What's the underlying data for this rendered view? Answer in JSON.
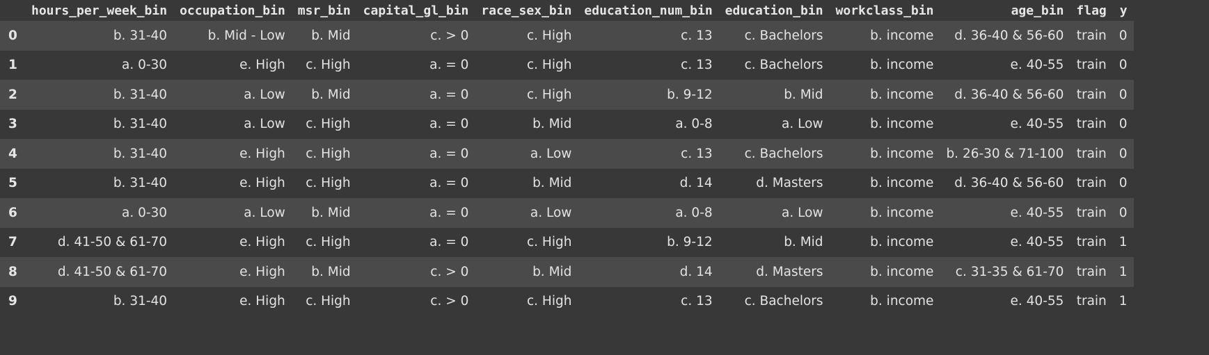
{
  "table": {
    "columns": [
      "hours_per_week_bin",
      "occupation_bin",
      "msr_bin",
      "capital_gl_bin",
      "race_sex_bin",
      "education_num_bin",
      "education_bin",
      "workclass_bin",
      "age_bin",
      "flag",
      "y"
    ],
    "index": [
      "0",
      "1",
      "2",
      "3",
      "4",
      "5",
      "6",
      "7",
      "8",
      "9"
    ],
    "rows": [
      [
        "b. 31-40",
        "b. Mid - Low",
        "b. Mid",
        "c. > 0",
        "c. High",
        "c. 13",
        "c. Bachelors",
        "b. income",
        "d. 36-40 & 56-60",
        "train",
        "0"
      ],
      [
        "a. 0-30",
        "e. High",
        "c. High",
        "a. = 0",
        "c. High",
        "c. 13",
        "c. Bachelors",
        "b. income",
        "e. 40-55",
        "train",
        "0"
      ],
      [
        "b. 31-40",
        "a. Low",
        "b. Mid",
        "a. = 0",
        "c. High",
        "b. 9-12",
        "b. Mid",
        "b. income",
        "d. 36-40 & 56-60",
        "train",
        "0"
      ],
      [
        "b. 31-40",
        "a. Low",
        "c. High",
        "a. = 0",
        "b. Mid",
        "a. 0-8",
        "a. Low",
        "b. income",
        "e. 40-55",
        "train",
        "0"
      ],
      [
        "b. 31-40",
        "e. High",
        "c. High",
        "a. = 0",
        "a. Low",
        "c. 13",
        "c. Bachelors",
        "b. income",
        "b. 26-30 & 71-100",
        "train",
        "0"
      ],
      [
        "b. 31-40",
        "e. High",
        "c. High",
        "a. = 0",
        "b. Mid",
        "d. 14",
        "d. Masters",
        "b. income",
        "d. 36-40 & 56-60",
        "train",
        "0"
      ],
      [
        "a. 0-30",
        "a. Low",
        "b. Mid",
        "a. = 0",
        "a. Low",
        "a. 0-8",
        "a. Low",
        "b. income",
        "e. 40-55",
        "train",
        "0"
      ],
      [
        "d. 41-50 & 61-70",
        "e. High",
        "c. High",
        "a. = 0",
        "c. High",
        "b. 9-12",
        "b. Mid",
        "b. income",
        "e. 40-55",
        "train",
        "1"
      ],
      [
        "d. 41-50 & 61-70",
        "e. High",
        "b. Mid",
        "c. > 0",
        "b. Mid",
        "d. 14",
        "d. Masters",
        "b. income",
        "c. 31-35 & 61-70",
        "train",
        "1"
      ],
      [
        "b. 31-40",
        "e. High",
        "c. High",
        "c. > 0",
        "c. High",
        "c. 13",
        "c. Bachelors",
        "b. income",
        "e. 40-55",
        "train",
        "1"
      ]
    ]
  }
}
